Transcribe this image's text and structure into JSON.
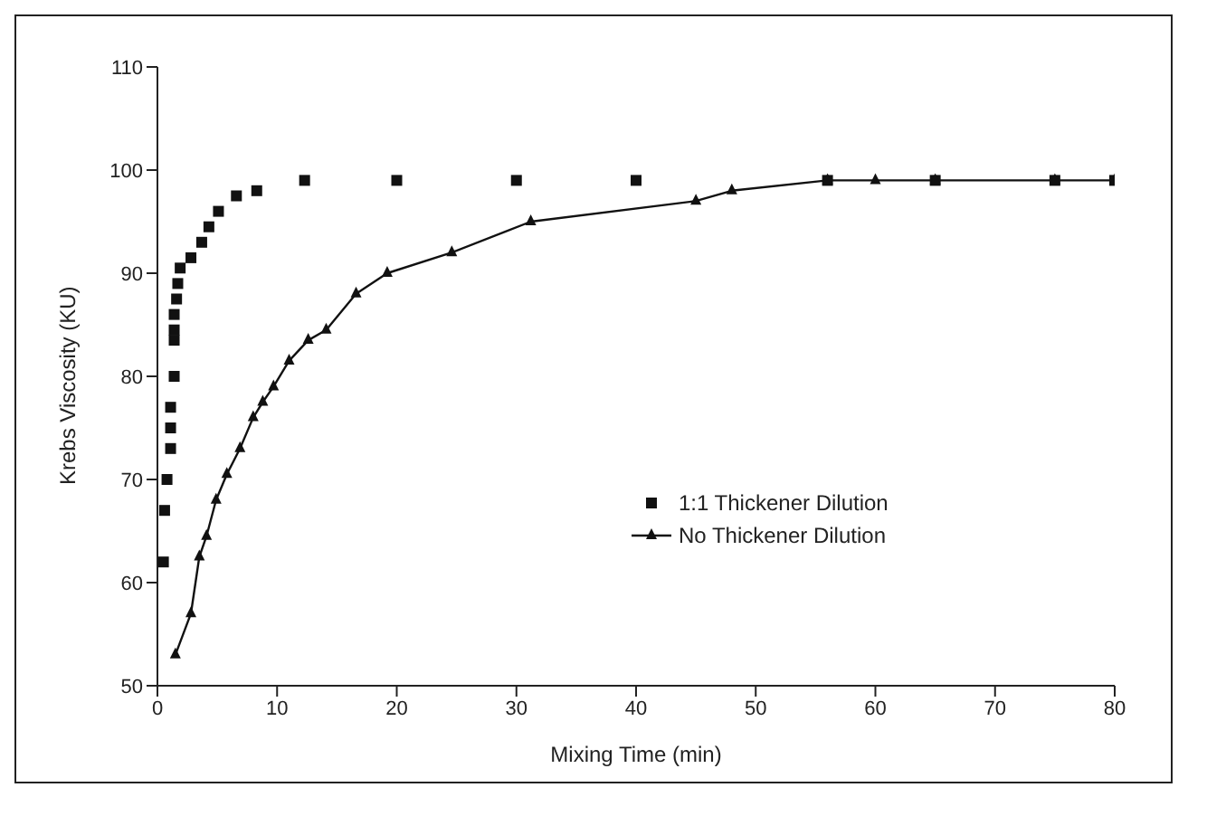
{
  "chart_data": {
    "type": "scatter",
    "xlabel": "Mixing Time (min)",
    "ylabel": "Krebs Viscosity (KU)",
    "xlim": [
      0,
      80
    ],
    "xticks": [
      0,
      10,
      20,
      30,
      40,
      50,
      60,
      70,
      80
    ],
    "ylim": [
      50,
      110
    ],
    "yticks": [
      50,
      60,
      70,
      80,
      90,
      100,
      110
    ],
    "legend": "right",
    "series": [
      {
        "name": "1:1 Thickener Dilution",
        "marker": "square",
        "color": "#111111",
        "x": [
          0.5,
          0.6,
          0.8,
          1.1,
          1.1,
          1.1,
          1.4,
          1.4,
          1.4,
          1.4,
          1.6,
          1.7,
          1.9,
          2.8,
          3.7,
          4.3,
          5.1,
          6.6,
          8.3,
          12.3,
          20,
          30,
          40,
          56,
          65,
          75,
          80
        ],
        "values": [
          62,
          67,
          70,
          73,
          75,
          77,
          80,
          83.5,
          84.5,
          86,
          87.5,
          89,
          90.5,
          91.5,
          93,
          94.5,
          96,
          97.5,
          98,
          99,
          99,
          99,
          99,
          99,
          99,
          99,
          99
        ]
      },
      {
        "name": "No Thickener Dilution",
        "type": "line",
        "marker": "triangle",
        "line_style": "solid",
        "color": "#111111",
        "x": [
          1.5,
          2.8,
          3.5,
          4.1,
          4.9,
          5.8,
          6.9,
          8,
          8.8,
          9.7,
          11,
          12.6,
          14.1,
          16.6,
          19.2,
          24.6,
          31.2,
          45,
          48,
          56,
          60,
          65,
          75,
          80
        ],
        "values": [
          53,
          57,
          62.5,
          64.5,
          68,
          70.5,
          73,
          76,
          77.5,
          79,
          81.5,
          83.5,
          84.5,
          88,
          90,
          92,
          95,
          97,
          98,
          99,
          99,
          99,
          99,
          99
        ]
      }
    ]
  }
}
